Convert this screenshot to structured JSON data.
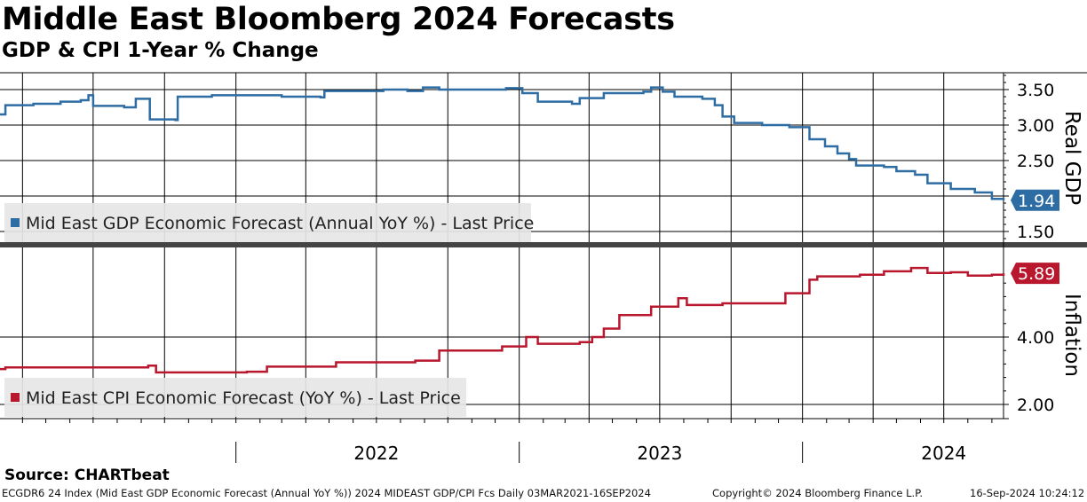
{
  "header": {
    "title": "Middle East Bloomberg 2024 Forecasts",
    "subtitle": "GDP & CPI 1-Year % Change"
  },
  "source": "Source: CHARTbeat",
  "footer": {
    "left": "ECGDR6 24 Index (Mid East GDP Economic Forecast (Annual YoY %)) 2024 MIDEAST GDP/CPI Fcs  Daily 03MAR2021-16SEP2024",
    "copyright": "Copyright© 2024 Bloomberg Finance L.P.",
    "timestamp": "16-Sep-2024 10:24:12"
  },
  "chart_data": [
    {
      "type": "line",
      "panel": "top",
      "ylabel": "Real GDP",
      "yticks": [
        "3.50",
        "3.00",
        "2.50",
        "2.00",
        "1.50"
      ],
      "ylim": [
        1.3,
        3.75
      ],
      "xlim": [
        "2021-03-03",
        "2024-09-16"
      ],
      "grid": true,
      "legend_position": "bottom-left",
      "last_value_label": "1.94",
      "color": "#2e6da4",
      "series": [
        {
          "name": "Mid East GDP Economic Forecast (Annual YoY %) - Last Price",
          "points": [
            [
              "2021-03-03",
              3.15
            ],
            [
              "2021-03-10",
              3.28
            ],
            [
              "2021-04-15",
              3.3
            ],
            [
              "2021-05-20",
              3.33
            ],
            [
              "2021-06-15",
              3.35
            ],
            [
              "2021-06-25",
              3.42
            ],
            [
              "2021-07-01",
              3.27
            ],
            [
              "2021-08-10",
              3.25
            ],
            [
              "2021-08-25",
              3.37
            ],
            [
              "2021-09-10",
              3.37
            ],
            [
              "2021-09-12",
              3.08
            ],
            [
              "2021-10-15",
              3.07
            ],
            [
              "2021-10-18",
              3.4
            ],
            [
              "2021-12-01",
              3.42
            ],
            [
              "2022-03-01",
              3.4
            ],
            [
              "2022-04-20",
              3.39
            ],
            [
              "2022-04-25",
              3.48
            ],
            [
              "2022-06-20",
              3.48
            ],
            [
              "2022-07-10",
              3.5
            ],
            [
              "2022-08-10",
              3.48
            ],
            [
              "2022-08-30",
              3.53
            ],
            [
              "2022-09-20",
              3.5
            ],
            [
              "2022-10-20",
              3.5
            ],
            [
              "2022-12-15",
              3.52
            ],
            [
              "2023-01-05",
              3.45
            ],
            [
              "2023-01-25",
              3.33
            ],
            [
              "2023-03-10",
              3.3
            ],
            [
              "2023-03-20",
              3.38
            ],
            [
              "2023-04-20",
              3.45
            ],
            [
              "2023-06-10",
              3.47
            ],
            [
              "2023-06-20",
              3.53
            ],
            [
              "2023-07-05",
              3.47
            ],
            [
              "2023-07-20",
              3.4
            ],
            [
              "2023-08-25",
              3.37
            ],
            [
              "2023-09-10",
              3.28
            ],
            [
              "2023-09-20",
              3.12
            ],
            [
              "2023-10-05",
              3.03
            ],
            [
              "2023-11-10",
              3.0
            ],
            [
              "2023-12-15",
              2.97
            ],
            [
              "2024-01-10",
              2.8
            ],
            [
              "2024-01-30",
              2.7
            ],
            [
              "2024-02-15",
              2.6
            ],
            [
              "2024-03-01",
              2.52
            ],
            [
              "2024-03-10",
              2.43
            ],
            [
              "2024-04-15",
              2.41
            ],
            [
              "2024-05-01",
              2.35
            ],
            [
              "2024-05-25",
              2.3
            ],
            [
              "2024-06-10",
              2.18
            ],
            [
              "2024-07-10",
              2.1
            ],
            [
              "2024-08-10",
              2.05
            ],
            [
              "2024-09-01",
              1.96
            ],
            [
              "2024-09-16",
              1.94
            ]
          ]
        }
      ]
    },
    {
      "type": "line",
      "panel": "bottom",
      "ylabel": "Inflation",
      "yticks": [
        "4.00",
        "2.00"
      ],
      "ylim": [
        1.6,
        6.9
      ],
      "xlim": [
        "2021-03-03",
        "2024-09-16"
      ],
      "xticks": [
        "2022",
        "2023",
        "2024"
      ],
      "grid": true,
      "legend_position": "bottom-left",
      "last_value_label": "5.89",
      "color": "#b8172e",
      "series": [
        {
          "name": "Mid East CPI Economic Forecast (YoY %) - Last Price",
          "points": [
            [
              "2021-03-03",
              3.05
            ],
            [
              "2021-03-10",
              3.1
            ],
            [
              "2021-09-10",
              3.15
            ],
            [
              "2021-09-20",
              2.95
            ],
            [
              "2022-01-15",
              2.97
            ],
            [
              "2022-02-10",
              3.12
            ],
            [
              "2022-05-10",
              3.25
            ],
            [
              "2022-08-20",
              3.3
            ],
            [
              "2022-09-20",
              3.6
            ],
            [
              "2022-12-10",
              3.72
            ],
            [
              "2023-01-10",
              4.0
            ],
            [
              "2023-01-25",
              3.8
            ],
            [
              "2023-03-20",
              3.85
            ],
            [
              "2023-04-05",
              4.0
            ],
            [
              "2023-04-20",
              4.25
            ],
            [
              "2023-05-10",
              4.65
            ],
            [
              "2023-06-20",
              4.9
            ],
            [
              "2023-07-25",
              5.15
            ],
            [
              "2023-08-05",
              4.95
            ],
            [
              "2023-09-20",
              5.0
            ],
            [
              "2023-11-25",
              5.0
            ],
            [
              "2023-12-10",
              5.3
            ],
            [
              "2024-01-10",
              5.7
            ],
            [
              "2024-01-20",
              5.8
            ],
            [
              "2024-03-15",
              5.85
            ],
            [
              "2024-04-15",
              5.95
            ],
            [
              "2024-05-20",
              6.05
            ],
            [
              "2024-06-10",
              5.9
            ],
            [
              "2024-07-10",
              5.92
            ],
            [
              "2024-08-01",
              5.82
            ],
            [
              "2024-09-01",
              5.85
            ],
            [
              "2024-09-16",
              5.89
            ]
          ]
        }
      ]
    }
  ]
}
